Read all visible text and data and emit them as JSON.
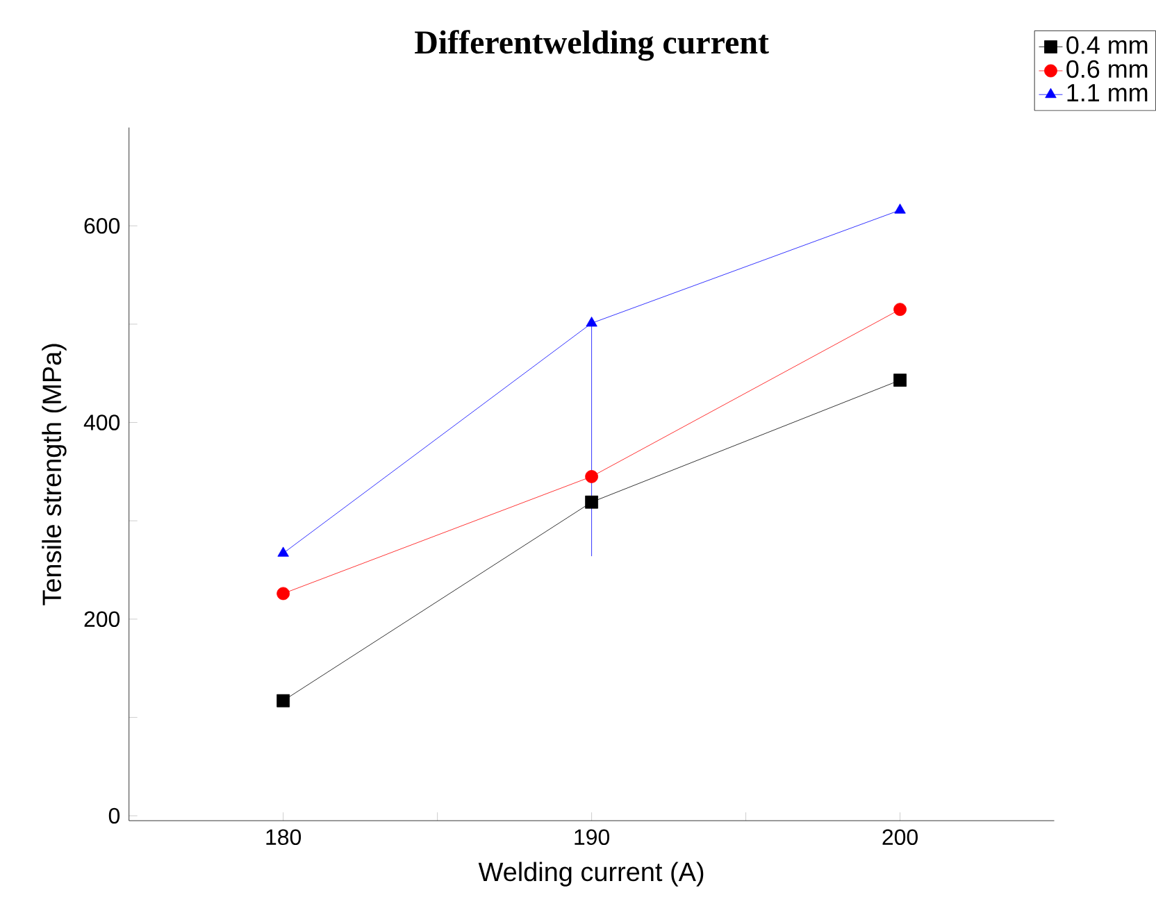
{
  "chart_data": {
    "type": "line",
    "title": "Differentwelding current",
    "xlabel": "Welding current (A)",
    "ylabel": "Tensile strength (MPa)",
    "x": [
      180,
      190,
      200
    ],
    "series": [
      {
        "name": "0.4 mm",
        "color": "#000000",
        "marker": "square",
        "values": [
          117,
          319,
          443
        ]
      },
      {
        "name": "0.6 mm",
        "color": "#ff0000",
        "marker": "circle",
        "values": [
          226,
          345,
          515
        ]
      },
      {
        "name": "1.1 mm",
        "color": "#0000ff",
        "marker": "triangle",
        "values": [
          267,
          501,
          616
        ],
        "errors": [
          null,
          [
            264,
            501
          ],
          null
        ]
      }
    ],
    "xlim": [
      175,
      205
    ],
    "xticks": [
      180,
      {
        "value": 185,
        "label": null
      },
      190,
      {
        "value": 195,
        "label": null
      },
      200
    ],
    "ylim": [
      -5,
      700
    ],
    "yticks": [
      0,
      {
        "value": 100,
        "label": null
      },
      200,
      {
        "value": 300,
        "label": null
      },
      400,
      {
        "value": 500,
        "label": null
      },
      600
    ],
    "grid": false,
    "legend": "top right"
  }
}
